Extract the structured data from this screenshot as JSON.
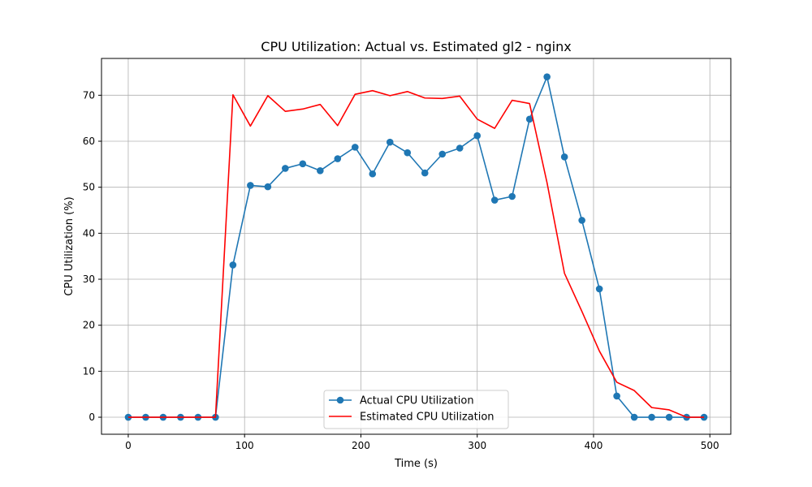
{
  "chart_data": {
    "type": "line",
    "title": "CPU Utilization: Actual vs. Estimated gl2 - nginx",
    "xlabel": "Time (s)",
    "ylabel": "CPU Utilization (%)",
    "xlim": [
      -23,
      518
    ],
    "ylim": [
      -3.7,
      78.0
    ],
    "xticks": [
      0,
      100,
      200,
      300,
      400,
      500
    ],
    "yticks": [
      0,
      10,
      20,
      30,
      40,
      50,
      60,
      70
    ],
    "grid": true,
    "legend_position": "bottom-center",
    "x": [
      0,
      15,
      30,
      45,
      60,
      75,
      90,
      105,
      120,
      135,
      150,
      165,
      180,
      195,
      210,
      225,
      240,
      255,
      270,
      285,
      300,
      315,
      330,
      345,
      360,
      375,
      390,
      405,
      420,
      435,
      450,
      465,
      480,
      495
    ],
    "series": [
      {
        "name": "Actual CPU Utilization",
        "color": "#1f77b4",
        "marker": "circle",
        "values": [
          0,
          0,
          0,
          0,
          0,
          0,
          33.1,
          50.4,
          50.1,
          54.1,
          55.1,
          53.6,
          56.2,
          58.7,
          52.9,
          59.8,
          57.5,
          53.1,
          57.2,
          58.5,
          61.2,
          47.2,
          48.0,
          64.8,
          74.0,
          56.6,
          42.8,
          27.9,
          4.6,
          0,
          0,
          0,
          0,
          0
        ]
      },
      {
        "name": "Estimated CPU Utilization",
        "color": "#ff0000",
        "marker": "none",
        "values": [
          0,
          0,
          0,
          0,
          0,
          0,
          70.1,
          63.3,
          69.9,
          66.5,
          67.0,
          68.0,
          63.4,
          70.2,
          71.0,
          69.9,
          70.8,
          69.4,
          69.3,
          69.8,
          64.8,
          62.8,
          68.9,
          68.2,
          51.0,
          31.3,
          23.0,
          14.4,
          7.6,
          5.8,
          2.1,
          1.6,
          0.0,
          0.0
        ]
      }
    ]
  }
}
